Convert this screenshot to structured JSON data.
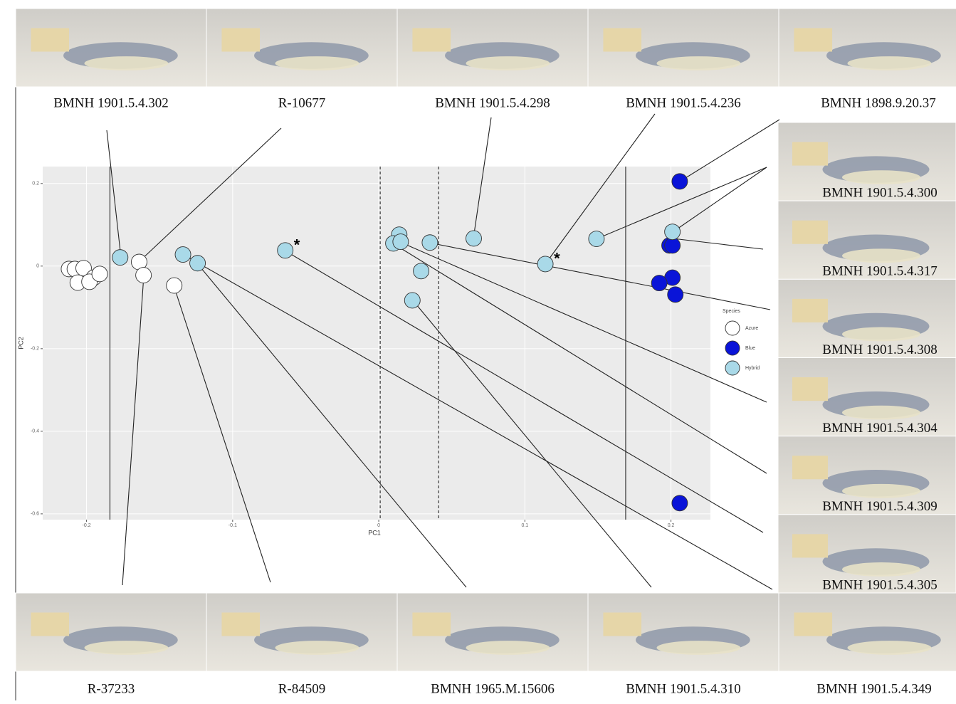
{
  "chart_data": {
    "type": "scatter",
    "xlabel": "PC1",
    "ylabel": "PC2",
    "xlim": [
      -0.23,
      0.227
    ],
    "ylim": [
      -0.614,
      0.241
    ],
    "xticks": [
      -0.2,
      -0.1,
      0.0,
      0.1,
      0.2
    ],
    "yticks": [
      0.2,
      0.0,
      -0.2,
      -0.4,
      -0.6
    ],
    "grid": true,
    "legend_title": "Species",
    "legend": "right",
    "vlines": [
      {
        "value": -0.184,
        "style": "solid"
      },
      {
        "value": 0.001,
        "style": "dashed"
      },
      {
        "value": 0.041,
        "style": "dashed"
      },
      {
        "value": 0.169,
        "style": "solid"
      }
    ],
    "annotations": [
      {
        "text": "*",
        "x": -0.064,
        "y": 0.038
      },
      {
        "text": "*",
        "x": 0.114,
        "y": 0.005
      }
    ],
    "series": [
      {
        "name": "Azure",
        "color": "#ffffff",
        "x": [
          -0.212,
          -0.208,
          -0.202,
          -0.195,
          -0.206,
          -0.198,
          -0.191,
          -0.164,
          -0.161,
          -0.14
        ],
        "y": [
          -0.007,
          -0.007,
          -0.005,
          -0.028,
          -0.04,
          -0.038,
          -0.019,
          0.01,
          -0.022,
          -0.047
        ]
      },
      {
        "name": "Blue",
        "color": "#0a14d8",
        "x": [
          0.206,
          0.199,
          0.201,
          0.201,
          0.192,
          0.203,
          0.206
        ],
        "y": [
          0.205,
          0.05,
          0.05,
          -0.028,
          -0.041,
          -0.069,
          -0.574
        ]
      },
      {
        "name": "Hybrid",
        "color": "#a9d9e8",
        "x": [
          -0.177,
          -0.134,
          -0.124,
          -0.064,
          0.014,
          0.01,
          0.015,
          0.035,
          0.065,
          0.029,
          0.023,
          0.114,
          0.149,
          0.201
        ],
        "y": [
          0.021,
          0.028,
          0.007,
          0.038,
          0.076,
          0.055,
          0.059,
          0.057,
          0.067,
          -0.012,
          -0.083,
          0.005,
          0.066,
          0.083
        ]
      }
    ]
  },
  "specimens": {
    "top": [
      "BMNH 1901.5.4.302",
      "R-10677",
      "BMNH 1901.5.4.298",
      "BMNH 1901.5.4.236",
      "BMNH 1898.9.20.37"
    ],
    "right": [
      "BMNH 1901.5.4.300",
      "BMNH 1901.5.4.317",
      "BMNH 1901.5.4.308",
      "BMNH 1901.5.4.304",
      "BMNH 1901.5.4.309",
      "BMNH 1901.5.4.305"
    ],
    "bottom": [
      "R-37233",
      "R-84509",
      "BMNH 1965.M.15606",
      "BMNH 1901.5.4.310",
      "BMNH 1901.5.4.349"
    ]
  }
}
